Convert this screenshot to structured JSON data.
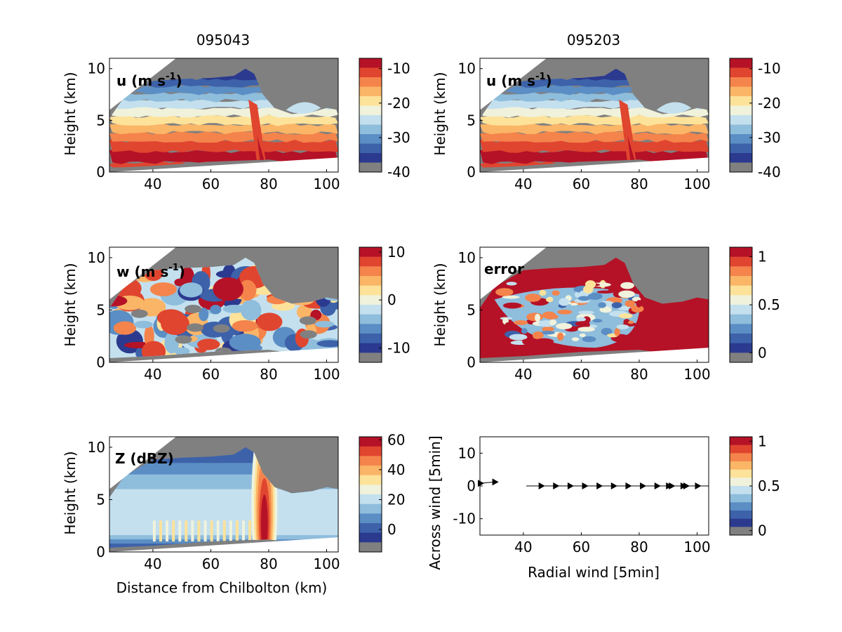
{
  "figure": {
    "col_titles": [
      "095043",
      "095203"
    ],
    "colors": {
      "missing": "#808080",
      "palette": [
        "#2b3a8f",
        "#3d62aa",
        "#5b8ec4",
        "#8fbddc",
        "#c4e0ee",
        "#f0f2dc",
        "#fde29a",
        "#fbb567",
        "#f4844b",
        "#e0452f",
        "#b51227"
      ]
    }
  },
  "chart_data": [
    {
      "type": "heatmap",
      "panel": "u-left",
      "label_main": "u (m s",
      "label_sup": "-1",
      "label_close": ")",
      "xlabel": "",
      "ylabel": "Height (km)",
      "xlim": [
        25,
        104
      ],
      "ylim": [
        0,
        11
      ],
      "xticks": [
        "40",
        "60",
        "80",
        "100"
      ],
      "yticks": [
        "0",
        "5",
        "10"
      ],
      "colorbar": {
        "min": -40,
        "max": -7,
        "ticks": [
          "-10",
          "-20",
          "-30",
          "-40"
        ],
        "tick_values": [
          -10,
          -20,
          -30,
          -40
        ]
      },
      "layers_y_km": [
        [
          0.5,
          1.6,
          "red"
        ],
        [
          1.6,
          3.0,
          "orange"
        ],
        [
          3.0,
          4.5,
          "yellow"
        ],
        [
          4.5,
          6.5,
          "lightblue"
        ],
        [
          6.5,
          9.5,
          "darkblue"
        ]
      ]
    },
    {
      "type": "heatmap",
      "panel": "u-right",
      "label_main": "u (m s",
      "label_sup": "-1",
      "label_close": ")",
      "xlabel": "",
      "ylabel": "Height (km)",
      "xlim": [
        25,
        104
      ],
      "ylim": [
        0,
        11
      ],
      "xticks": [
        "40",
        "60",
        "80",
        "100"
      ],
      "yticks": [
        "0",
        "5",
        "10"
      ],
      "colorbar": {
        "min": -40,
        "max": -7,
        "ticks": [
          "-10",
          "-20",
          "-30",
          "-40"
        ],
        "tick_values": [
          -10,
          -20,
          -30,
          -40
        ]
      }
    },
    {
      "type": "heatmap",
      "panel": "w-left",
      "label_main": "w (m s",
      "label_sup": "-1",
      "label_close": ")",
      "xlabel": "",
      "ylabel": "Height (km)",
      "xlim": [
        25,
        104
      ],
      "ylim": [
        0,
        11
      ],
      "xticks": [
        "40",
        "60",
        "80",
        "100"
      ],
      "yticks": [
        "0",
        "5",
        "10"
      ],
      "colorbar": {
        "min": -13,
        "max": 11,
        "ticks": [
          "10",
          "0",
          "-10"
        ],
        "tick_values": [
          10,
          0,
          -10
        ]
      }
    },
    {
      "type": "heatmap",
      "panel": "error-right",
      "label_main": "error",
      "xlabel": "",
      "ylabel": "Height (km)",
      "xlim": [
        25,
        104
      ],
      "ylim": [
        0,
        11
      ],
      "xticks": [
        "40",
        "60",
        "80",
        "100"
      ],
      "yticks": [
        "0",
        "5",
        "10"
      ],
      "colorbar": {
        "min": -0.1,
        "max": 1.1,
        "ticks": [
          "1",
          "0.5",
          "0"
        ],
        "tick_values": [
          1,
          0.5,
          0
        ]
      }
    },
    {
      "type": "heatmap",
      "panel": "z-left",
      "label_main": "Z (dBZ)",
      "xlabel": "Distance from Chilbolton (km)",
      "ylabel": "Height (km)",
      "xlim": [
        25,
        104
      ],
      "ylim": [
        0,
        11
      ],
      "xticks": [
        "40",
        "60",
        "80",
        "100"
      ],
      "yticks": [
        "0",
        "5",
        "10"
      ],
      "colorbar": {
        "min": -15,
        "max": 62,
        "ticks": [
          "60",
          "40",
          "20",
          "0"
        ],
        "tick_values": [
          60,
          40,
          20,
          0
        ]
      }
    },
    {
      "type": "scatter",
      "panel": "wind-right",
      "xlabel": "Radial wind [5min]",
      "ylabel": "Across wind [5min]",
      "xlim": [
        25,
        104
      ],
      "ylim": [
        -15,
        15
      ],
      "xticks": [
        "40",
        "60",
        "80",
        "100"
      ],
      "yticks": [
        "10",
        "0",
        "-10"
      ],
      "ytick_values": [
        10,
        0,
        -10
      ],
      "colorbar": {
        "min": -0.05,
        "max": 1.05,
        "ticks": [
          "1",
          "0.5",
          "0"
        ],
        "tick_values": [
          1,
          0.5,
          0
        ]
      },
      "points": [
        {
          "x": 25,
          "y": 0.8
        },
        {
          "x": 30,
          "y": 1.2
        },
        {
          "x": 46,
          "y": 0
        },
        {
          "x": 51,
          "y": 0
        },
        {
          "x": 56,
          "y": 0
        },
        {
          "x": 61,
          "y": 0
        },
        {
          "x": 66,
          "y": 0
        },
        {
          "x": 71,
          "y": 0
        },
        {
          "x": 76,
          "y": 0
        },
        {
          "x": 81,
          "y": 0
        },
        {
          "x": 86,
          "y": 0
        },
        {
          "x": 90,
          "y": 0
        },
        {
          "x": 91,
          "y": 0
        },
        {
          "x": 95,
          "y": 0
        },
        {
          "x": 96,
          "y": 0
        },
        {
          "x": 100,
          "y": 0
        }
      ]
    }
  ]
}
